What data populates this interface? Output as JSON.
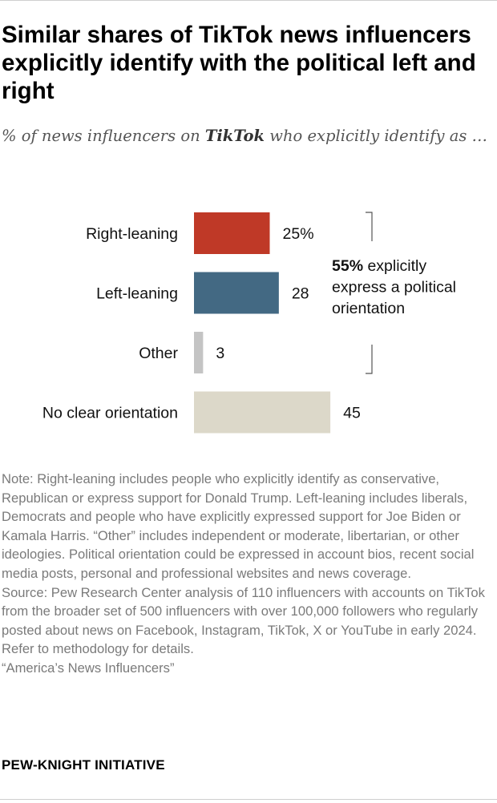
{
  "title": "Similar shares of TikTok news influencers explicitly identify with the political left and right",
  "subtitle": {
    "before": "% of news influencers on ",
    "platform": "TikTok",
    "after": " who explicitly identify as …"
  },
  "chart_data": {
    "type": "bar",
    "orientation": "horizontal",
    "categories": [
      "Right-leaning",
      "Left-leaning",
      "Other",
      "No clear orientation"
    ],
    "values": [
      25,
      28,
      3,
      45
    ],
    "value_labels": [
      "25%",
      "28",
      "3",
      "45"
    ],
    "colors": [
      "#bf3927",
      "#436983",
      "#c4c4c4",
      "#dcd8c9"
    ],
    "xlim": [
      0,
      100
    ],
    "annotation": {
      "bold": "55%",
      "text": " explicitly express a political orientation",
      "spans": [
        "Right-leaning",
        "Left-leaning",
        "Other"
      ]
    }
  },
  "note": "Note: Right-leaning includes people who explicitly identify as conservative, Republican or express support for Donald Trump. Left-leaning includes liberals, Democrats and people who have explicitly expressed support for Joe Biden or Kamala Harris. “Other” includes independent or moderate, libertarian, or other ideologies. Political orientation could be expressed in account bios, recent social media posts, personal and professional websites and news coverage.",
  "source": "Source: Pew Research Center analysis of 110 influencers with accounts on TikTok from the broader set of 500 influencers with over 100,000 followers who regularly posted about news on Facebook, Instagram, TikTok, X or YouTube in early 2024. Refer to methodology for details.",
  "report": "“America’s News Influencers”",
  "brand": "PEW-KNIGHT INITIATIVE"
}
